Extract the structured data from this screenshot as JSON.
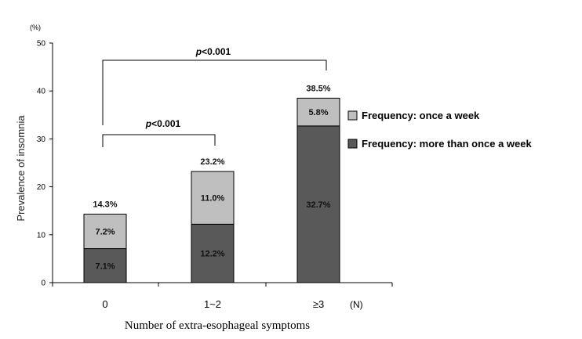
{
  "chart_data": {
    "type": "bar",
    "stacked": true,
    "categories": [
      "0",
      "1~2",
      "≥3"
    ],
    "series": [
      {
        "name": "Frequency: more than once a week",
        "values": [
          7.1,
          12.2,
          32.7
        ],
        "labels": [
          "7.1%",
          "12.2%",
          "32.7%"
        ],
        "color": "#595959"
      },
      {
        "name": "Frequency: once a week",
        "values": [
          7.2,
          11.0,
          5.8
        ],
        "labels": [
          "7.2%",
          "11.0%",
          "5.8%"
        ],
        "color": "#bfbfbf"
      }
    ],
    "totals": [
      14.3,
      23.2,
      38.5
    ],
    "total_labels": [
      "14.3%",
      "23.2%",
      "38.5%"
    ],
    "xlabel": "Number of extra-esophageal symptoms",
    "x_unit": "(N)",
    "ylabel": "Prevalence of insomnia",
    "y_unit": "(%)",
    "ylim": [
      0,
      50
    ],
    "yticks": [
      "0",
      "10",
      "20",
      "30",
      "40",
      "50"
    ],
    "grid": false,
    "legend_position": "right",
    "legend_order": [
      "Frequency: once a week",
      "Frequency: more than once a week"
    ],
    "significance": [
      {
        "from": "0",
        "to": "1~2",
        "p_symbol": "p",
        "p_rest": "<0.001"
      },
      {
        "from": "0",
        "to": "≥3",
        "p_symbol": "p",
        "p_rest": "<0.001"
      }
    ]
  }
}
